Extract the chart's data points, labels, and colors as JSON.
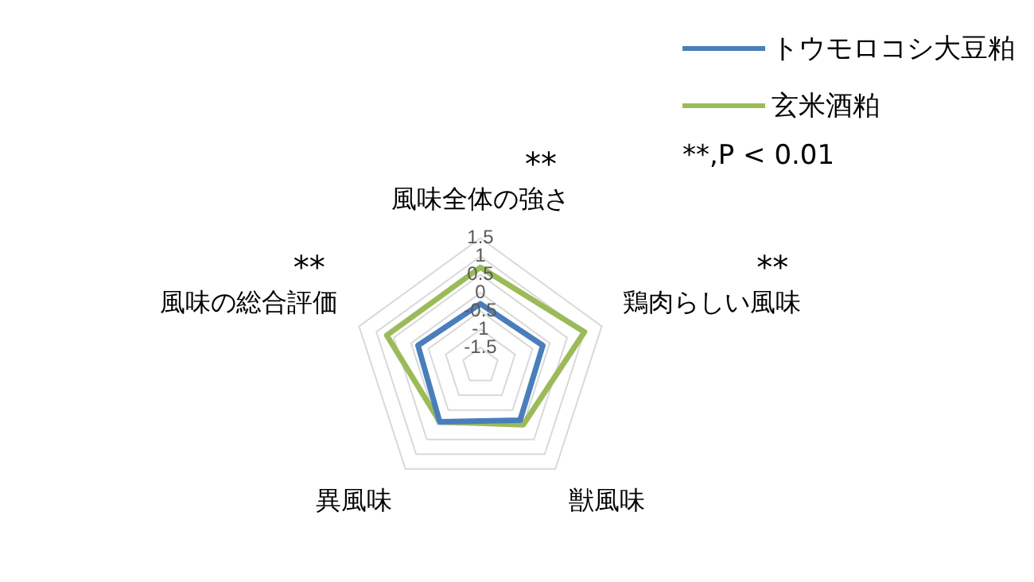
{
  "chart_data": {
    "type": "radar",
    "categories": [
      "風味全体の強さ",
      "鶏肉らしい風味",
      "獣風味",
      "異風味",
      "風味の総合評価"
    ],
    "series": [
      {
        "name": "トウモロコシ大豆粕",
        "color": "#4a7ebb",
        "values": [
          -0.3,
          -0.2,
          -0.15,
          -0.1,
          -0.2
        ]
      },
      {
        "name": "玄米酒粕",
        "color": "#9bbb59",
        "values": [
          0.7,
          1.0,
          0,
          -0.1,
          0.7
        ]
      }
    ],
    "ylim": [
      -2,
      1.5
    ],
    "yticks": [
      -1.5,
      -1,
      -0.5,
      0,
      0.5,
      1,
      1.5
    ],
    "grid": true,
    "legend": "top right",
    "marker": "none",
    "annotations": [
      {
        "text": "**",
        "x": "風味全体の強さ"
      },
      {
        "text": "**",
        "x": "鶏肉らしい風味"
      },
      {
        "text": "**",
        "x": "風味の総合評価"
      },
      "**,P < 0.01"
    ]
  }
}
